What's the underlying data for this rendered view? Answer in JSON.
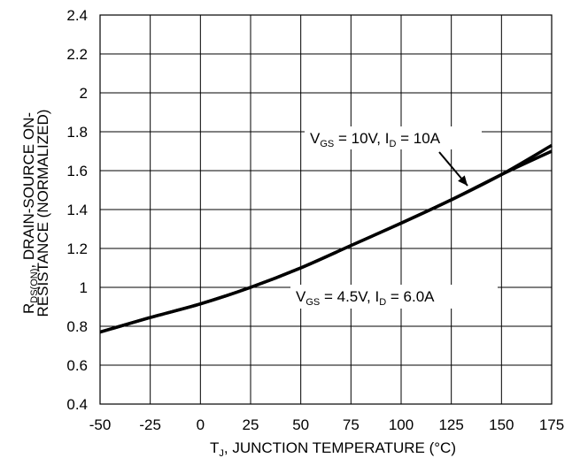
{
  "chart_data": {
    "type": "line",
    "x_tick_labels": [
      "-50",
      "-25",
      "0",
      "25",
      "50",
      "75",
      "100",
      "125",
      "150",
      "175"
    ],
    "y_tick_labels": [
      "0.4",
      "0.6",
      "0.8",
      "1",
      "1.2",
      "1.4",
      "1.6",
      "1.8",
      "2",
      "2.2",
      "2.4"
    ],
    "xlim": [
      -50,
      175
    ],
    "ylim": [
      0.4,
      2.4
    ],
    "grid": true,
    "xlabel": {
      "main": "T",
      "sub": "J",
      "rest": ", JUNCTION TEMPERATURE (°C)"
    },
    "ylabel": {
      "line1_main": "R",
      "line1_sub": "DS(ON)",
      "line1_rest": ", DRAIN-SOURCE ON-",
      "line2": "RESISTANCE (NORMALIZED)"
    },
    "series": [
      {
        "x": [
          -50,
          -25,
          0,
          25,
          50,
          75,
          100,
          125,
          150,
          175
        ],
        "y": [
          0.77,
          0.845,
          0.915,
          1.0,
          1.1,
          1.215,
          1.33,
          1.45,
          1.58,
          1.73
        ]
      },
      {
        "x": [
          -50,
          -25,
          0,
          25,
          50,
          75,
          100,
          125,
          150,
          175
        ],
        "y": [
          0.77,
          0.845,
          0.915,
          1.0,
          1.1,
          1.215,
          1.33,
          1.45,
          1.58,
          1.7
        ]
      }
    ],
    "annotations": [
      {
        "prefix": "V",
        "sub1": "GS",
        "mid": " = 10V, I",
        "sub2": "D",
        "suffix": " = 10A",
        "arrow": true
      },
      {
        "prefix": "V",
        "sub1": "GS",
        "mid": " = 4.5V, I",
        "sub2": "D",
        "suffix": " = 6.0A",
        "arrow": false
      }
    ]
  }
}
